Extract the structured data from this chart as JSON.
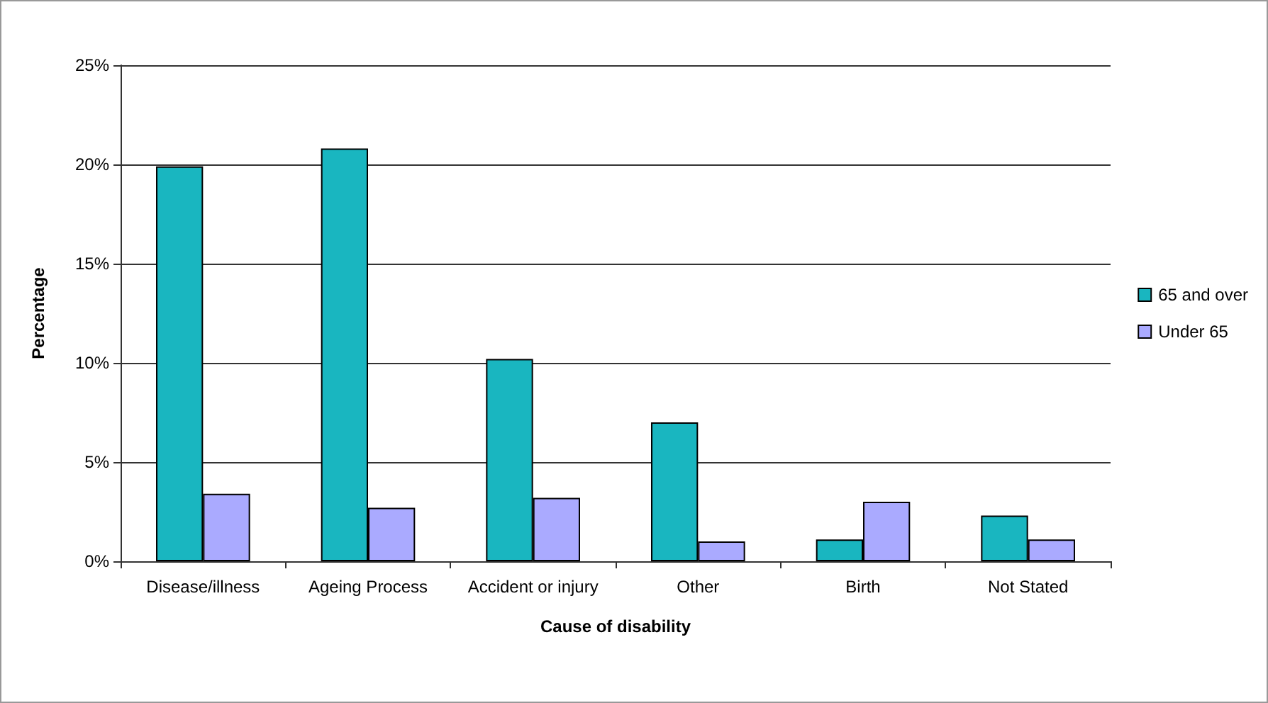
{
  "chart_data": {
    "type": "bar",
    "xlabel": "Cause of disability",
    "ylabel": "Percentage",
    "categories": [
      "Disease/illness",
      "Ageing Process",
      "Accident or injury",
      "Other",
      "Birth",
      "Not Stated"
    ],
    "series": [
      {
        "name": "65 and over",
        "color": "#19b6c0",
        "values": [
          19.9,
          20.8,
          10.2,
          7.0,
          1.1,
          2.3
        ]
      },
      {
        "name": "Under 65",
        "color": "#aaaaff",
        "values": [
          3.4,
          2.7,
          3.2,
          1.0,
          3.0,
          1.1
        ]
      }
    ],
    "ylim": [
      0,
      25
    ],
    "yticks": [
      {
        "value": 0,
        "label": "0%"
      },
      {
        "value": 5,
        "label": "5%"
      },
      {
        "value": 10,
        "label": "10%"
      },
      {
        "value": 15,
        "label": "15%"
      },
      {
        "value": 20,
        "label": "20%"
      },
      {
        "value": 25,
        "label": "25%"
      }
    ],
    "grid": "y",
    "legend": "right"
  }
}
